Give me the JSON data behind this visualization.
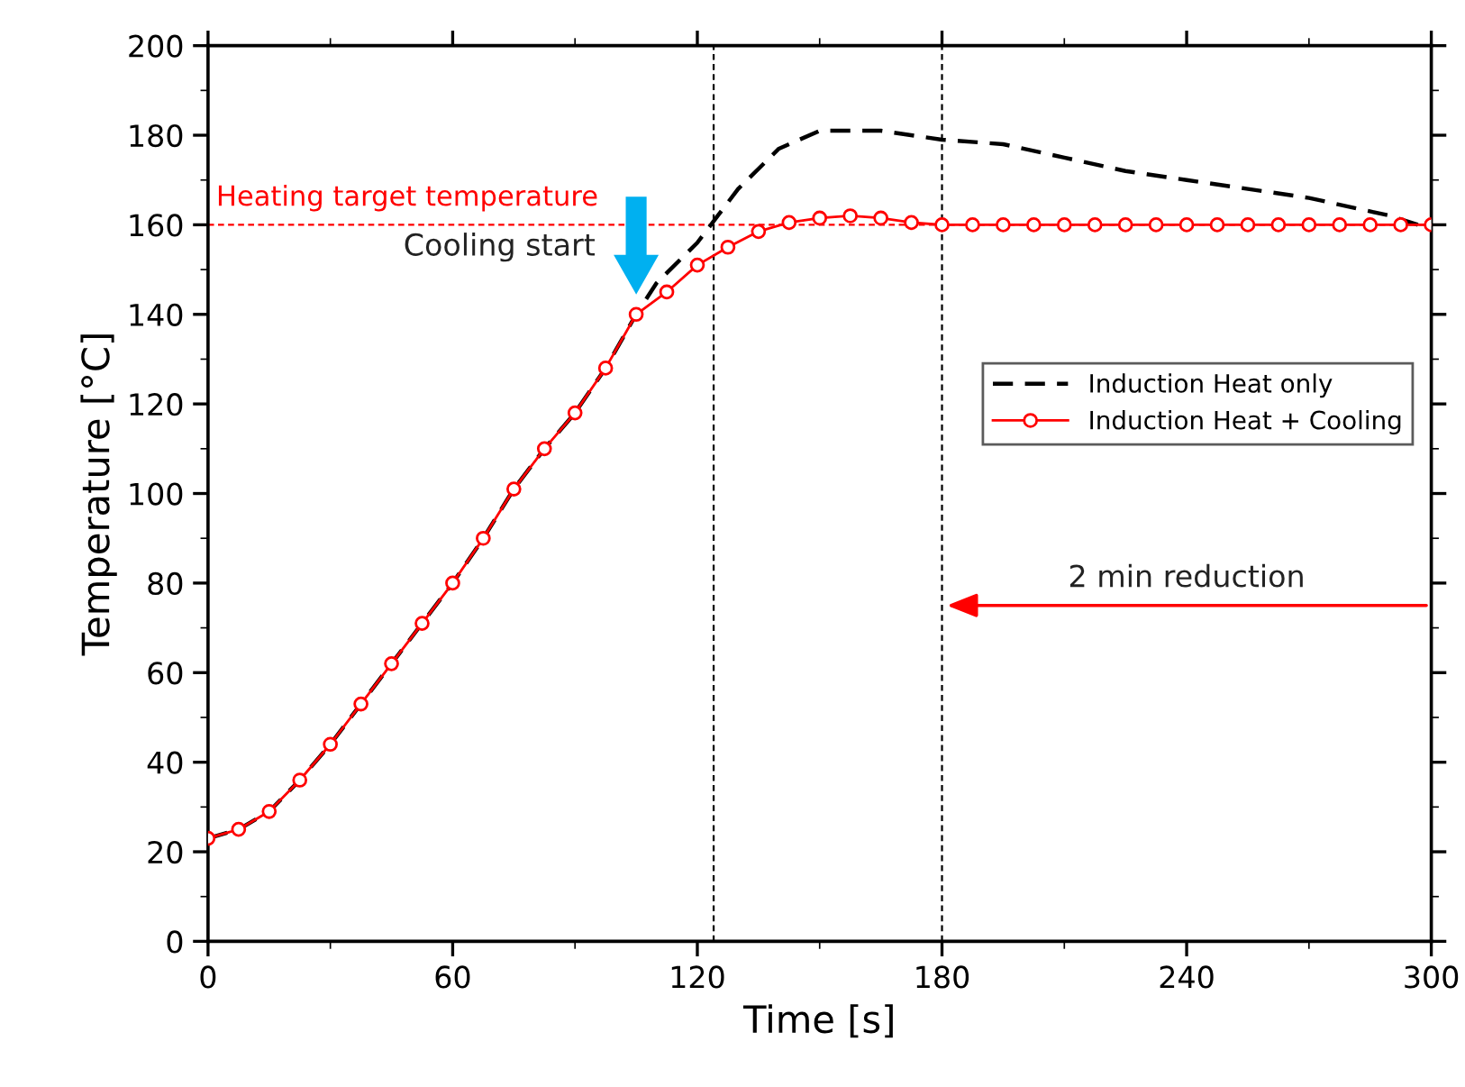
{
  "chart_data": {
    "type": "line",
    "xlabel": "Time [s]",
    "ylabel": "Temperature [°C]",
    "xlim": [
      0,
      300
    ],
    "xticks": [
      0,
      60,
      120,
      180,
      240,
      300
    ],
    "ylim": [
      0,
      200
    ],
    "yticks": [
      0,
      20,
      40,
      60,
      80,
      100,
      120,
      140,
      160,
      180,
      200
    ],
    "grid": false,
    "legend": "right",
    "series": [
      {
        "name": "Induction Heat only",
        "color": "#000000",
        "line_style": "dashed",
        "marker": "none",
        "x": [
          0,
          7.5,
          15,
          22.5,
          30,
          37.5,
          45,
          52.5,
          60,
          67.5,
          75,
          82.5,
          90,
          97.5,
          105,
          110,
          120,
          125,
          130,
          140,
          150,
          165,
          180,
          195,
          210,
          225,
          240,
          270,
          290,
          300
        ],
        "values": [
          23,
          25,
          29,
          36,
          44,
          53,
          62,
          71,
          80,
          90,
          101,
          110,
          118,
          128,
          140,
          147,
          156,
          162,
          168,
          177,
          181,
          181,
          179,
          178,
          175,
          172,
          170,
          166,
          162,
          159
        ]
      },
      {
        "name": "Induction Heat + Cooling",
        "color": "#ff0000",
        "line_style": "solid",
        "marker": "circle",
        "x": [
          0,
          7.5,
          15,
          22.5,
          30,
          37.5,
          45,
          52.5,
          60,
          67.5,
          75,
          82.5,
          90,
          97.5,
          105,
          112.5,
          120,
          127.5,
          135,
          142.5,
          150,
          157.5,
          165,
          172.5,
          180,
          187.5,
          195,
          202.5,
          210,
          217.5,
          225,
          232.5,
          240,
          247.5,
          255,
          262.5,
          270,
          277.5,
          285,
          292.5,
          300
        ],
        "values": [
          23,
          25,
          29,
          36,
          44,
          53,
          62,
          71,
          80,
          90,
          101,
          110,
          118,
          128,
          140,
          145,
          151,
          155,
          158.5,
          160.5,
          161.5,
          162,
          161.5,
          160.5,
          160,
          160,
          160,
          160,
          160,
          160,
          160,
          160,
          160,
          160,
          160,
          160,
          160,
          160,
          160,
          160,
          160
        ]
      }
    ],
    "ref_lines": [
      {
        "axis": "y",
        "value": 160,
        "label": "Heating target temperature",
        "color": "#ff0000",
        "line_style": "dashed"
      },
      {
        "axis": "x",
        "value": 124,
        "label": null,
        "color": "#000000",
        "line_style": "dashed"
      },
      {
        "axis": "x",
        "value": 180,
        "label": null,
        "color": "#000000",
        "line_style": "dashed"
      }
    ],
    "annotations": [
      {
        "text": "Cooling start",
        "x": 105,
        "y": 140
      },
      "2 min reduction"
    ]
  }
}
